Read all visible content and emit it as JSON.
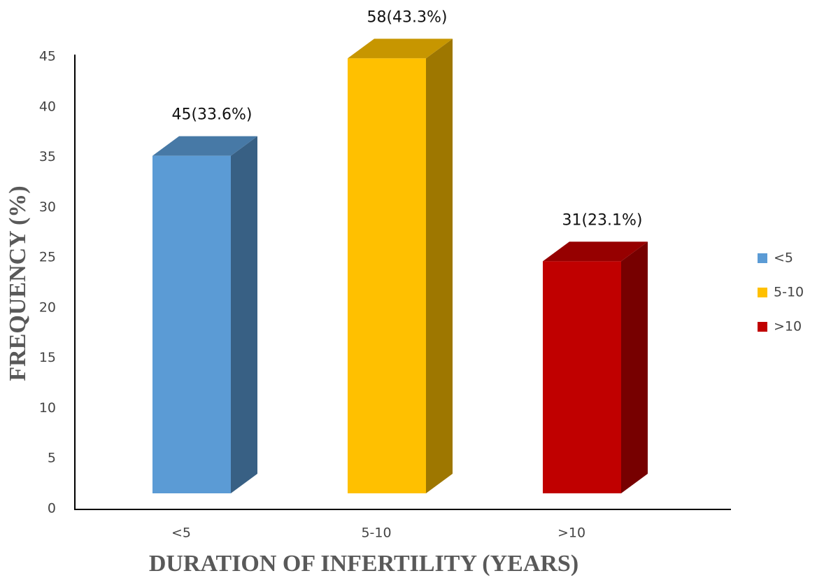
{
  "chart_data": {
    "type": "bar3d",
    "categories": [
      "<5",
      "5-10",
      ">10"
    ],
    "values": [
      33.6,
      43.3,
      23.1
    ],
    "value_labels": [
      "45(33.6%)",
      "58(43.3%)",
      "31(23.1%)"
    ],
    "colors": [
      "#5b9bd5",
      "#ffc000",
      "#c00000"
    ],
    "x_label": "DURATION OF INFERTILITY  (YEARS)",
    "y_label": "FREQUENCY (%)",
    "ylim": [
      0,
      45
    ],
    "yticks": [
      0,
      5,
      10,
      15,
      20,
      25,
      30,
      35,
      40,
      45
    ],
    "legend": "right"
  }
}
